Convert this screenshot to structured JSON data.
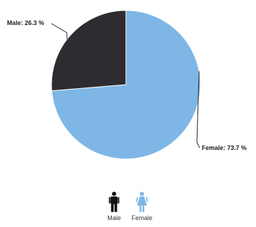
{
  "chart_data": {
    "type": "pie",
    "categories": [
      "Male",
      "Female"
    ],
    "values": [
      26.3,
      73.7
    ],
    "unit": "%",
    "data_labels": [
      "Male: 26.3 %",
      "Female: 73.7 %"
    ],
    "colors": [
      "#2e2c30",
      "#7eb7e6"
    ],
    "legend": {
      "placement": "bottom-center",
      "items": [
        {
          "label": "Male",
          "icon": "male-person-icon",
          "color": "#111111"
        },
        {
          "label": "Female",
          "icon": "female-person-icon",
          "color": "#7eb7e6"
        }
      ]
    }
  }
}
